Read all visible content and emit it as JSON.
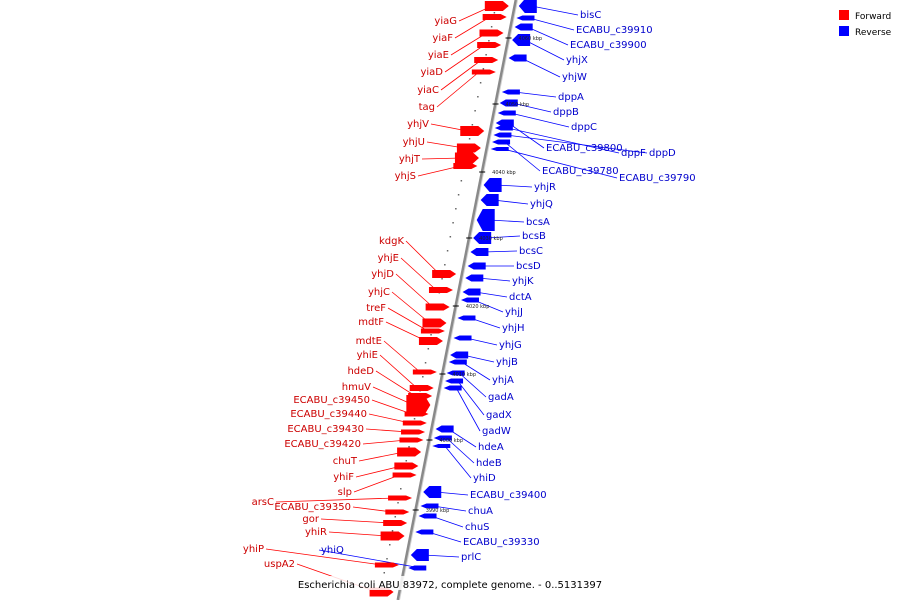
{
  "caption": "Escherichia coli ABU 83972, complete genome. - 0..5131397",
  "legend": {
    "placement": "top-right",
    "items": [
      {
        "label": "Forward",
        "color": "#ff0000"
      },
      {
        "label": "Reverse",
        "color": "#0000ff"
      }
    ]
  },
  "colors": {
    "forward": "#ff0000",
    "forward_label": "#cc0000",
    "reverse": "#0000ff",
    "reverse_label": "#0000cc",
    "axis": "#888888"
  },
  "ticks": [
    "4060 kbp",
    "4050 kbp",
    "4040 kbp",
    "4030 kbp",
    "4020 kbp",
    "4010 kbp",
    "4000 kbp",
    "3990 kbp"
  ],
  "forward_genes": [
    "yiaG",
    "yiaF",
    "yiaE",
    "yiaD",
    "yiaC",
    "tag",
    "yhjV",
    "yhjU",
    "yhjT",
    "yhjS",
    "kdgK",
    "yhjE",
    "yhjD",
    "yhjC",
    "treF",
    "mdtF",
    "mdtE",
    "yhiE",
    "hdeD",
    "hmuV",
    "ECABU_c39450",
    "ECABU_c39440",
    "ECABU_c39430",
    "ECABU_c39420",
    "chuT",
    "yhiF",
    "slp",
    "arsC",
    "ECABU_c39350",
    "gor",
    "yhiR",
    "yhiP",
    "uspA2"
  ],
  "reverse_genes": [
    "bisC",
    "ECABU_c39910",
    "ECABU_c39900",
    "yhjX",
    "yhjW",
    "dppA",
    "dppB",
    "dppC",
    "ECABU_c39800",
    "dppF",
    "dppD",
    "ECABU_c39780",
    "ECABU_c39790",
    "yhjR",
    "yhjQ",
    "bcsA",
    "bcsB",
    "bcsC",
    "bcsD",
    "yhjK",
    "dctA",
    "yhjJ",
    "yhjH",
    "yhjG",
    "yhjB",
    "yhjA",
    "gadA",
    "gadX",
    "gadW",
    "hdeA",
    "hdeB",
    "yhiD",
    "ECABU_c39400",
    "chuA",
    "chuS",
    "ECABU_c39330",
    "prlC",
    "yhiQ"
  ]
}
